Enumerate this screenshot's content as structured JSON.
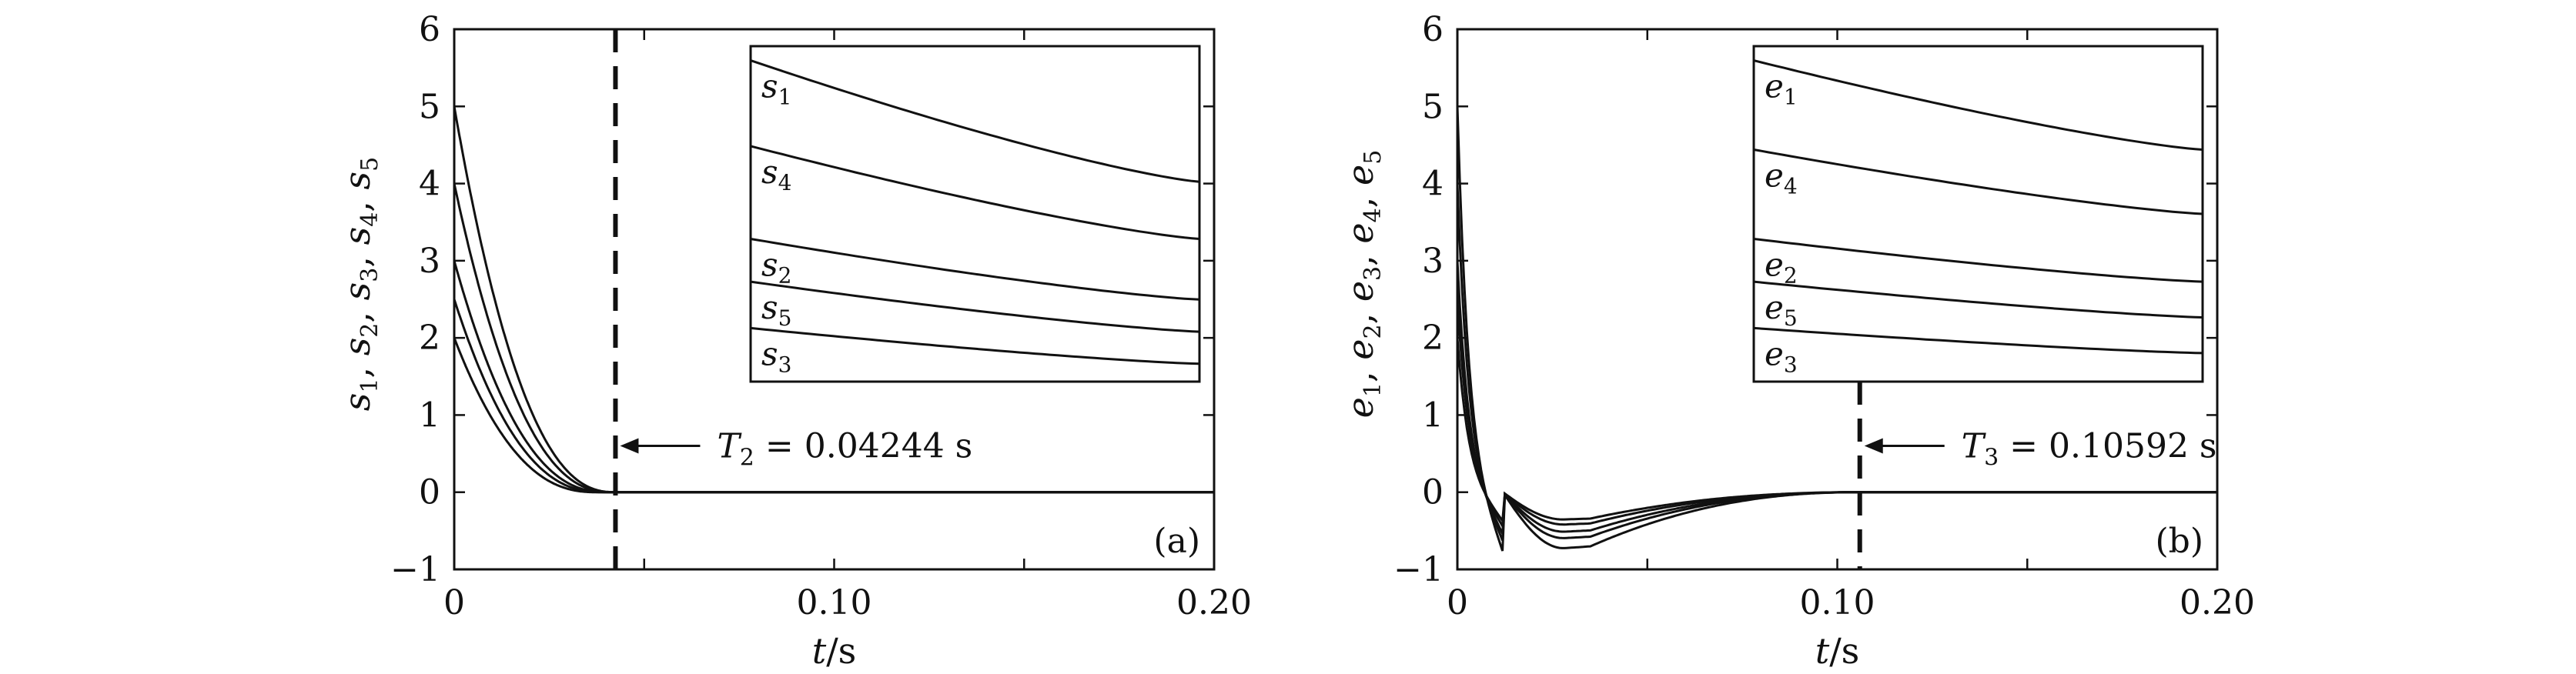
{
  "chart_data": [
    {
      "type": "line",
      "panel_label": "(a)",
      "ylabel": "s1, s2, s3, s4, s5",
      "xlabel": "t/s",
      "xlim": [
        0,
        0.2
      ],
      "ylim": [
        -1,
        6
      ],
      "x_ticks": [
        0,
        0.1,
        0.2
      ],
      "x_tick_labels": [
        "0",
        "0.10",
        "0.20"
      ],
      "y_ticks": [
        -1,
        0,
        1,
        2,
        3,
        4,
        5,
        6
      ],
      "y_tick_labels": [
        "−1",
        "0",
        "1",
        "2",
        "3",
        "4",
        "5",
        "6"
      ],
      "annotation": {
        "text": "T2 = 0.04244 s",
        "x": 0.04244
      },
      "series": [
        {
          "name": "s1",
          "initial": 5.0,
          "settle_time": 0.04244
        },
        {
          "name": "s4",
          "initial": 4.0,
          "settle_time": 0.0418
        },
        {
          "name": "s2",
          "initial": 3.0,
          "settle_time": 0.0405
        },
        {
          "name": "s5",
          "initial": 2.5,
          "settle_time": 0.0392
        },
        {
          "name": "s3",
          "initial": 2.0,
          "settle_time": 0.0375
        }
      ],
      "inset_lines": [
        {
          "label": "s1",
          "y_start": 5.8,
          "y_end": 4.1
        },
        {
          "label": "s4",
          "y_start": 4.6,
          "y_end": 3.3
        },
        {
          "label": "s2",
          "y_start": 3.3,
          "y_end": 2.45
        },
        {
          "label": "s5",
          "y_start": 2.7,
          "y_end": 2.0
        },
        {
          "label": "s3",
          "y_start": 2.05,
          "y_end": 1.55
        }
      ]
    },
    {
      "type": "line",
      "panel_label": "(b)",
      "ylabel": "e1, e2, e3, e4, e5",
      "xlabel": "t/s",
      "xlim": [
        0,
        0.2
      ],
      "ylim": [
        -1,
        6
      ],
      "x_ticks": [
        0,
        0.1,
        0.2
      ],
      "x_tick_labels": [
        "0",
        "0.10",
        "0.20"
      ],
      "y_ticks": [
        -1,
        0,
        1,
        2,
        3,
        4,
        5,
        6
      ],
      "y_tick_labels": [
        "−1",
        "0",
        "1",
        "2",
        "3",
        "4",
        "5",
        "6"
      ],
      "annotation": {
        "text": "T3 = 0.10592 s",
        "x": 0.10592
      },
      "series": [
        {
          "name": "e1",
          "initial": 5.0,
          "min": -0.78
        },
        {
          "name": "e4",
          "initial": 4.0,
          "min": -0.64
        },
        {
          "name": "e2",
          "initial": 3.0,
          "min": -0.55
        },
        {
          "name": "e5",
          "initial": 2.5,
          "min": -0.45
        },
        {
          "name": "e3",
          "initial": 2.0,
          "min": -0.38
        }
      ],
      "inset_lines": [
        {
          "label": "e1",
          "y_start": 5.8,
          "y_end": 4.55
        },
        {
          "label": "e4",
          "y_start": 4.55,
          "y_end": 3.65
        },
        {
          "label": "e2",
          "y_start": 3.3,
          "y_end": 2.7
        },
        {
          "label": "e5",
          "y_start": 2.7,
          "y_end": 2.2
        },
        {
          "label": "e3",
          "y_start": 2.05,
          "y_end": 1.7
        }
      ]
    }
  ]
}
